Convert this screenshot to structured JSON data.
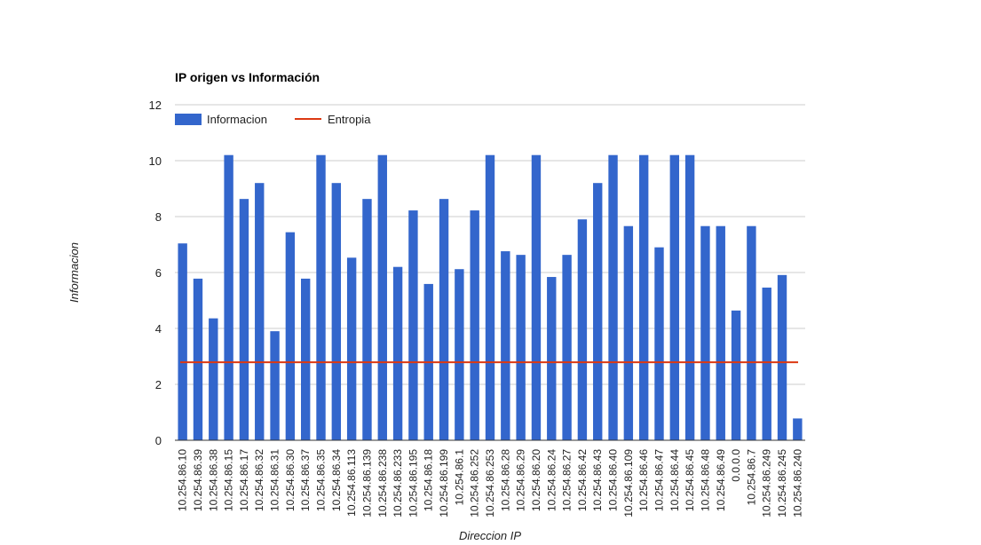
{
  "chart_data": {
    "type": "bar",
    "title": "IP origen vs Información",
    "xlabel": "Direccion IP",
    "ylabel": "Informacion",
    "ylim": [
      0,
      12
    ],
    "yticks": [
      "0",
      "2",
      "4",
      "6",
      "8",
      "10",
      "12"
    ],
    "grid": true,
    "legend_position": "top-left",
    "categories": [
      "10.254.86.10",
      "10.254.86.39",
      "10.254.86.38",
      "10.254.86.15",
      "10.254.86.17",
      "10.254.86.32",
      "10.254.86.31",
      "10.254.86.30",
      "10.254.86.37",
      "10.254.86.35",
      "10.254.86.34",
      "10.254.86.113",
      "10.254.86.139",
      "10.254.86.238",
      "10.254.86.233",
      "10.254.86.195",
      "10.254.86.18",
      "10.254.86.199",
      "10.254.86.1",
      "10.254.86.252",
      "10.254.86.253",
      "10.254.86.28",
      "10.254.86.29",
      "10.254.86.20",
      "10.254.86.24",
      "10.254.86.27",
      "10.254.86.42",
      "10.254.86.43",
      "10.254.86.40",
      "10.254.86.109",
      "10.254.86.46",
      "10.254.86.47",
      "10.254.86.44",
      "10.254.86.45",
      "10.254.86.48",
      "10.254.86.49",
      "0.0.0.0",
      "10.254.86.7",
      "10.254.86.249",
      "10.254.86.245",
      "10.254.86.240"
    ],
    "series": [
      {
        "name": "Informacion",
        "type": "bar",
        "color": "#3366cc",
        "values": [
          7.04,
          5.78,
          4.36,
          10.2,
          8.63,
          9.2,
          3.9,
          7.44,
          5.78,
          10.2,
          9.2,
          6.53,
          8.63,
          10.2,
          6.2,
          8.22,
          5.59,
          8.63,
          6.12,
          8.22,
          10.2,
          6.76,
          6.63,
          10.2,
          5.84,
          6.63,
          7.9,
          9.2,
          10.2,
          7.66,
          10.2,
          6.9,
          10.2,
          10.2,
          7.66,
          7.66,
          4.64,
          7.66,
          5.46,
          5.91,
          0.78
        ]
      },
      {
        "name": "Entropia",
        "type": "line",
        "color": "#dc3912",
        "values": [
          2.79,
          2.79,
          2.79,
          2.79,
          2.79,
          2.79,
          2.79,
          2.79,
          2.79,
          2.79,
          2.79,
          2.79,
          2.79,
          2.79,
          2.79,
          2.79,
          2.79,
          2.79,
          2.79,
          2.79,
          2.79,
          2.79,
          2.79,
          2.79,
          2.79,
          2.79,
          2.79,
          2.79,
          2.79,
          2.79,
          2.79,
          2.79,
          2.79,
          2.79,
          2.79,
          2.79,
          2.79,
          2.79,
          2.79,
          2.79,
          2.79
        ]
      }
    ]
  }
}
